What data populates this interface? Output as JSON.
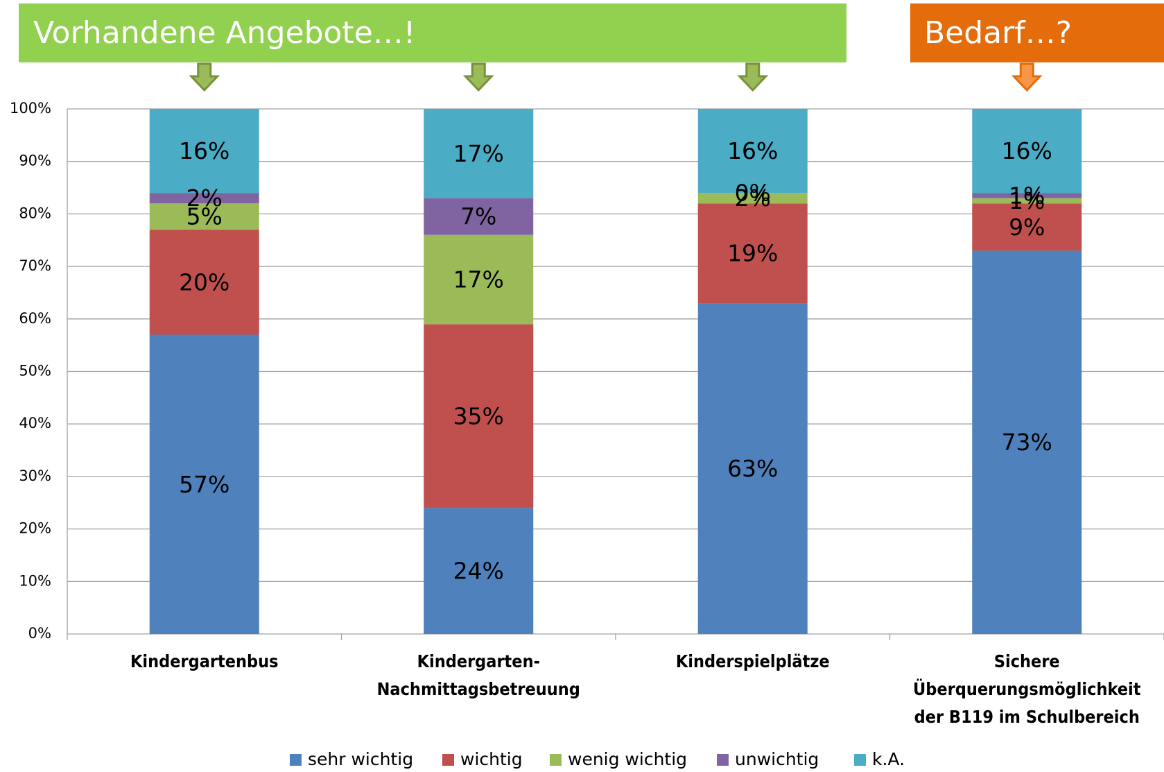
{
  "chart_data": {
    "type": "stacked_bar",
    "annotations": [
      "Vorhandene Angebote…!",
      "Bedarf…?"
    ],
    "categories": [
      "Kindergartenbus",
      "Kindergarten-\nNachmittagsbetreuung",
      "Kinderspielplätze",
      "Sichere\nÜberquerungsmöglichkeit\nder B119 im Schulbereich"
    ],
    "series": [
      {
        "name": "sehr wichtig",
        "color": "#4f81bd",
        "values": [
          57,
          24,
          63,
          73
        ],
        "value_labels": [
          "57%",
          "24%",
          "63%",
          "73%"
        ]
      },
      {
        "name": "wichtig",
        "color": "#c0504d",
        "values": [
          20,
          35,
          19,
          9
        ],
        "value_labels": [
          "20%",
          "35%",
          "19%",
          "9%"
        ]
      },
      {
        "name": "wenig wichtig",
        "color": "#9bbb59",
        "values": [
          5,
          17,
          2,
          1
        ],
        "value_labels": [
          "5%",
          "17%",
          "2%",
          "1%"
        ]
      },
      {
        "name": "unwichtig",
        "color": "#8064a2",
        "values": [
          2,
          7,
          0,
          1
        ],
        "value_labels": [
          "2%",
          "7%",
          "0%",
          "1%"
        ]
      },
      {
        "name": "k.A.",
        "color": "#4bacc6",
        "values": [
          16,
          17,
          16,
          16
        ],
        "value_labels": [
          "16%",
          "17%",
          "16%",
          "16%"
        ]
      }
    ],
    "ylim": [
      0,
      100
    ],
    "yticks": [
      {
        "value": 0,
        "label": "0%"
      },
      {
        "value": 10,
        "label": "10%"
      },
      {
        "value": 20,
        "label": "20%"
      },
      {
        "value": 30,
        "label": "30%"
      },
      {
        "value": 40,
        "label": "40%"
      },
      {
        "value": 50,
        "label": "50%"
      },
      {
        "value": 60,
        "label": "60%"
      },
      {
        "value": 70,
        "label": "70%"
      },
      {
        "value": 80,
        "label": "80%"
      },
      {
        "value": 90,
        "label": "90%"
      },
      {
        "value": 100,
        "label": "100%"
      }
    ],
    "grid": true,
    "legend": "bottom"
  }
}
